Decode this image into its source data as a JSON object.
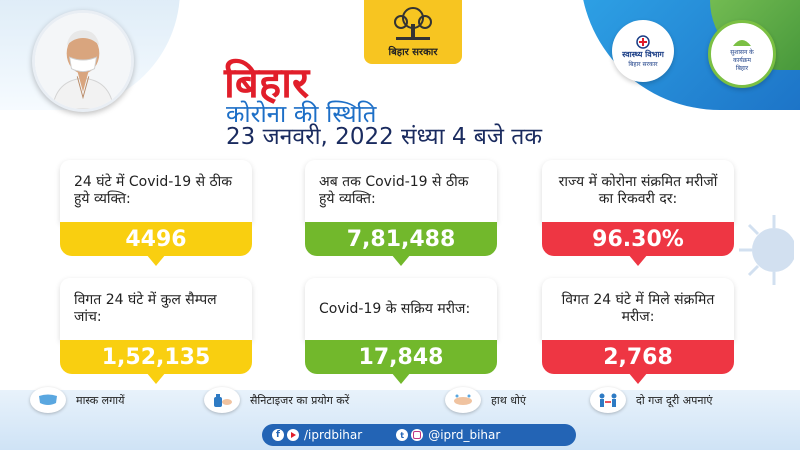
{
  "header": {
    "emblem_label": "बिहार सरकार",
    "logo_left_line1": "स्वास्थ्य विभाग",
    "logo_left_line2": "बिहार सरकार",
    "logo_right_line1": "सुशासन के",
    "logo_right_line2": "कार्यक्रम",
    "logo_right_line3": "बिहार"
  },
  "title": {
    "state": "बिहार",
    "subtitle": "कोरोना की स्थिति",
    "date": "23 जनवरी, 2022 संध्या 4 बजे तक"
  },
  "cards": [
    {
      "label": "24 घंटे में Covid-19 से ठीक हुये व्यक्ति:",
      "value": "4496",
      "color": "#f9cf10"
    },
    {
      "label": "अब तक Covid-19 से ठीक हुये व्यक्ति:",
      "value": "7,81,488",
      "color": "#72b82c"
    },
    {
      "label": "राज्य में कोरोना संक्रमित मरीजों का रिकवरी दर:",
      "value": "96.30%",
      "color": "#ee3643"
    },
    {
      "label": "विगत 24 घंटे में कुल सैम्पल जांच:",
      "value": "1,52,135",
      "color": "#f9cf10"
    },
    {
      "label": "Covid-19 के सक्रिय मरीज:",
      "value": "17,848",
      "color": "#72b82c"
    },
    {
      "label": "विगत 24 घंटे में मिले संक्रमित मरीज:",
      "value": "2,768",
      "color": "#ee3643"
    }
  ],
  "guidelines": [
    {
      "label": "मास्क लगायें",
      "icon": "mask-icon"
    },
    {
      "label": "सैनिटाइजर का प्रयोग करें",
      "icon": "sanitizer-icon"
    },
    {
      "label": "हाथ धोएं",
      "icon": "handwash-icon"
    },
    {
      "label": "दो गज दूरी अपनाएं",
      "icon": "social-distance-icon"
    }
  ],
  "social": {
    "handle_fb_yt": "/iprdbihar",
    "handle_tw_ig": "@iprd_bihar"
  }
}
